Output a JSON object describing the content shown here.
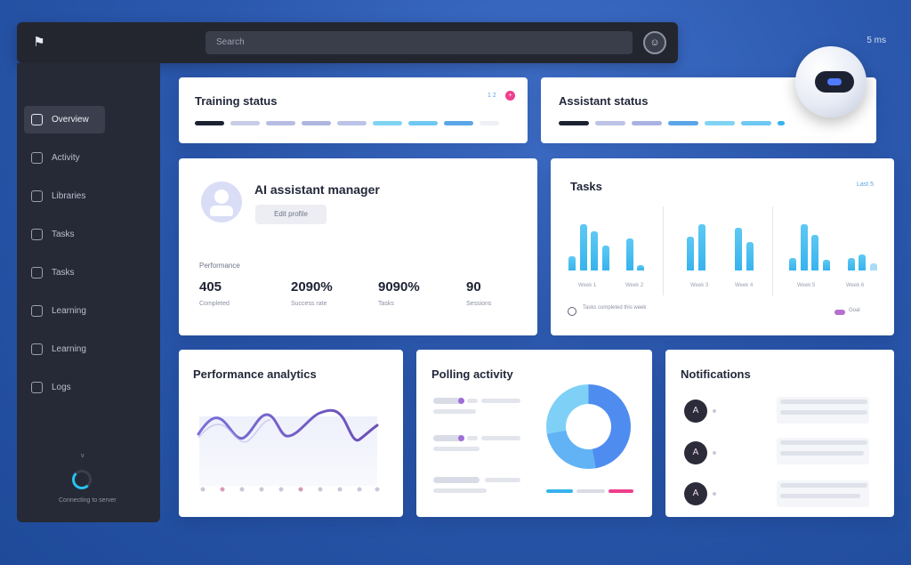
{
  "topbar": {
    "search_placeholder": "Search",
    "avatar_glyph": "☺",
    "corner_label": "5 ms"
  },
  "sidebar": {
    "logo_glyph": "⚑",
    "items": [
      {
        "label": "Overview",
        "active": true
      },
      {
        "label": "Activity",
        "active": false
      },
      {
        "label": "Libraries",
        "active": false
      },
      {
        "label": "Tasks",
        "active": false
      },
      {
        "label": "Tasks",
        "active": false
      },
      {
        "label": "Learning",
        "active": false
      },
      {
        "label": "Learning",
        "active": false
      },
      {
        "label": "Logs",
        "active": false
      }
    ],
    "footer_small": "v",
    "footer_status": "Connecting to server"
  },
  "cards": {
    "training": {
      "title": "Training status",
      "badge": "+",
      "mini_label": "1 2"
    },
    "assistant": {
      "title": "Assistant status"
    },
    "profile": {
      "title": "AI assistant manager",
      "tag": "Edit profile",
      "stats_header": "Performance",
      "stats": [
        {
          "value": "405",
          "label": "Completed"
        },
        {
          "value": "2090%",
          "label": "Success rate"
        },
        {
          "value": "9090%",
          "label": "Tasks"
        },
        {
          "value": "90",
          "label": "Sessions"
        }
      ]
    },
    "tasks": {
      "title": "Tasks",
      "mini_label": "Last 5",
      "ticks": [
        "Week 1",
        "Week 2",
        "Week 3",
        "Week 4",
        "Week 5",
        "Week 6"
      ],
      "legend_left": "Tasks completed this week",
      "legend_right": "Goal"
    },
    "trend": {
      "title": "Performance analytics"
    },
    "polling": {
      "title": "Polling activity"
    },
    "notifications": {
      "title": "Notifications",
      "avatar_glyph": "A"
    }
  },
  "colors": {
    "accent_blue": "#37b3ee",
    "accent_pink": "#ef3f8c",
    "sidebar_bg": "#262a36",
    "page_bg": "#2b58ad"
  }
}
